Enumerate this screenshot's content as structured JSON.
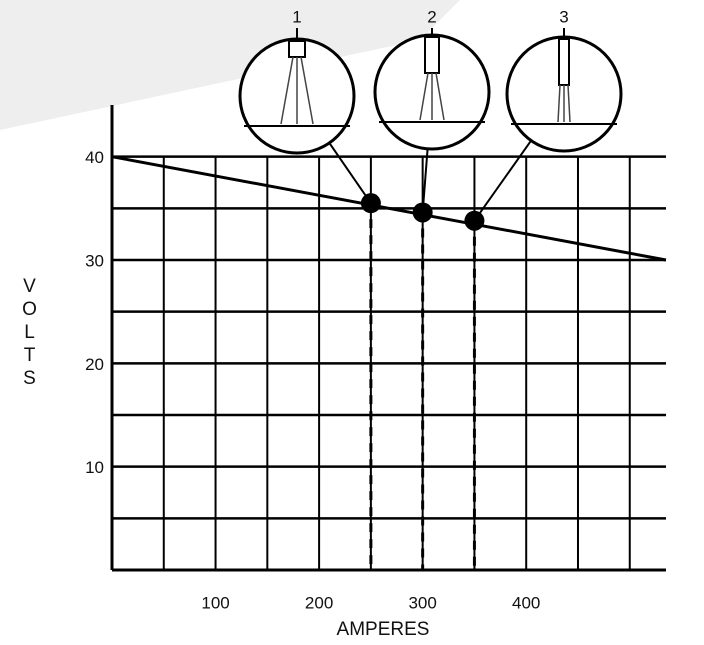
{
  "chart_data": {
    "type": "line",
    "x_label": "AMPERES",
    "y_label": "VOLTS",
    "xlim": [
      0,
      535
    ],
    "ylim": [
      0,
      45
    ],
    "xticks": [
      100,
      200,
      300,
      400
    ],
    "yticks": [
      10,
      20,
      30,
      40
    ],
    "x_grid": [
      50,
      100,
      150,
      200,
      250,
      300,
      350,
      400,
      450,
      500
    ],
    "y_grid": [
      5,
      10,
      15,
      20,
      25,
      30,
      35,
      40
    ],
    "color": "#000000",
    "x": [
      0,
      535
    ],
    "values": [
      40,
      30
    ],
    "points": {
      "labels": [
        "1",
        "2",
        "3"
      ],
      "x": [
        250,
        300,
        350
      ],
      "values": [
        35.5,
        34.6,
        33.8
      ]
    }
  }
}
